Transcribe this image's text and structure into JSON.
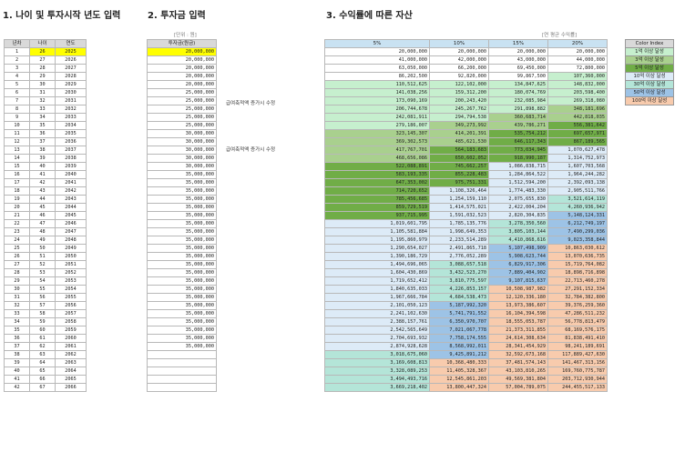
{
  "titles": {
    "section1": "1. 나이 및 투자시작 년도 입력",
    "section2": "2. 투자금 입력",
    "section3": "3. 수익률에 따른 자산"
  },
  "notes": {
    "unit": "[단위 : 원]",
    "rate": "[연 평균 수익률]",
    "annotation1": "급여축적액 증가시 수정",
    "annotation2": "급여축적액 증가시 수정"
  },
  "headers": {
    "year_no": "년차",
    "age": "나이",
    "year": "연도",
    "investment": "투자금(원금)",
    "rates": [
      "5%",
      "10%",
      "15%",
      "20%"
    ]
  },
  "legend": {
    "title": "Color Index",
    "items": [
      {
        "label": "1억 이상 달성",
        "color": "#c6efce"
      },
      {
        "label": "3억 이상 달성",
        "color": "#a9d08e"
      },
      {
        "label": "5억 이상 달성",
        "color": "#70ad47"
      },
      {
        "label": "10억 이상 달성",
        "color": "#ddebf7"
      },
      {
        "label": "30억 이상 달성",
        "color": "#b4e5d8"
      },
      {
        "label": "50억 이상 달성",
        "color": "#9dc3e6"
      },
      {
        "label": "100억 이상 달성",
        "color": "#f8cbad"
      }
    ]
  },
  "rows": [
    {
      "n": "1",
      "age": "26",
      "year": "2025",
      "inv": "20,000,000",
      "r5": "20,000,000",
      "r10": "20,000,000",
      "r15": "20,000,000",
      "r20": "20,000,000"
    },
    {
      "n": "2",
      "age": "27",
      "year": "2026",
      "inv": "20,000,000",
      "r5": "41,000,000",
      "r10": "42,000,000",
      "r15": "43,000,000",
      "r20": "44,000,000"
    },
    {
      "n": "3",
      "age": "28",
      "year": "2027",
      "inv": "20,000,000",
      "r5": "63,050,000",
      "r10": "66,200,000",
      "r15": "69,450,000",
      "r20": "72,800,000"
    },
    {
      "n": "4",
      "age": "29",
      "year": "2028",
      "inv": "20,000,000",
      "r5": "86,202,500",
      "r10": "92,820,000",
      "r15": "99,867,500",
      "r20": "107,360,000"
    },
    {
      "n": "5",
      "age": "30",
      "year": "2029",
      "inv": "20,000,000",
      "r5": "110,512,625",
      "r10": "122,102,000",
      "r15": "134,847,625",
      "r20": "148,832,000"
    },
    {
      "n": "6",
      "age": "31",
      "year": "2030",
      "inv": "25,000,000",
      "r5": "141,038,256",
      "r10": "159,312,200",
      "r15": "180,074,769",
      "r20": "203,598,400"
    },
    {
      "n": "7",
      "age": "32",
      "year": "2031",
      "inv": "25,000,000",
      "r5": "173,090,169",
      "r10": "200,243,420",
      "r15": "232,085,984",
      "r20": "269,318,080"
    },
    {
      "n": "8",
      "age": "33",
      "year": "2032",
      "inv": "25,000,000",
      "r5": "206,744,678",
      "r10": "245,267,762",
      "r15": "291,898,882",
      "r20": "348,181,696"
    },
    {
      "n": "9",
      "age": "34",
      "year": "2033",
      "inv": "25,000,000",
      "r5": "242,081,911",
      "r10": "294,794,538",
      "r15": "360,683,714",
      "r20": "442,818,035"
    },
    {
      "n": "10",
      "age": "35",
      "year": "2034",
      "inv": "25,000,000",
      "r5": "279,186,007",
      "r10": "349,273,992",
      "r15": "439,786,271",
      "r20": "556,381,642"
    },
    {
      "n": "11",
      "age": "36",
      "year": "2035",
      "inv": "30,000,000",
      "r5": "323,145,307",
      "r10": "414,201,391",
      "r15": "535,754,212",
      "r20": "697,657,971"
    },
    {
      "n": "12",
      "age": "37",
      "year": "2036",
      "inv": "30,000,000",
      "r5": "369,302,573",
      "r10": "485,621,530",
      "r15": "646,117,343",
      "r20": "867,189,565"
    },
    {
      "n": "13",
      "age": "38",
      "year": "2037",
      "inv": "30,000,000",
      "r5": "417,767,701",
      "r10": "564,183,683",
      "r15": "773,034,945",
      "r20": "1,070,627,478"
    },
    {
      "n": "14",
      "age": "39",
      "year": "2038",
      "inv": "30,000,000",
      "r5": "468,656,086",
      "r10": "650,602,052",
      "r15": "918,990,187",
      "r20": "1,314,752,973"
    },
    {
      "n": "15",
      "age": "40",
      "year": "2039",
      "inv": "30,000,000",
      "r5": "522,088,891",
      "r10": "745,662,257",
      "r15": "1,086,838,715",
      "r20": "1,607,703,568"
    },
    {
      "n": "16",
      "age": "41",
      "year": "2040",
      "inv": "35,000,000",
      "r5": "583,193,335",
      "r10": "855,228,483",
      "r15": "1,284,864,522",
      "r20": "1,964,244,282"
    },
    {
      "n": "17",
      "age": "42",
      "year": "2041",
      "inv": "35,000,000",
      "r5": "647,353,002",
      "r10": "975,751,331",
      "r15": "1,512,594,200",
      "r20": "2,392,093,138"
    },
    {
      "n": "18",
      "age": "43",
      "year": "2042",
      "inv": "35,000,000",
      "r5": "714,720,652",
      "r10": "1,108,326,464",
      "r15": "1,774,483,330",
      "r20": "2,905,511,766"
    },
    {
      "n": "19",
      "age": "44",
      "year": "2043",
      "inv": "35,000,000",
      "r5": "785,456,685",
      "r10": "1,254,159,110",
      "r15": "2,075,655,830",
      "r20": "3,521,614,119"
    },
    {
      "n": "20",
      "age": "45",
      "year": "2044",
      "inv": "35,000,000",
      "r5": "859,729,519",
      "r10": "1,414,575,021",
      "r15": "2,422,004,204",
      "r20": "4,260,936,942"
    },
    {
      "n": "21",
      "age": "46",
      "year": "2045",
      "inv": "35,000,000",
      "r5": "937,715,995",
      "r10": "1,591,032,523",
      "r15": "2,820,304,835",
      "r20": "5,148,124,331"
    },
    {
      "n": "22",
      "age": "47",
      "year": "2046",
      "inv": "35,000,000",
      "r5": "1,019,601,795",
      "r10": "1,785,135,776",
      "r15": "3,278,350,560",
      "r20": "6,212,749,197"
    },
    {
      "n": "23",
      "age": "48",
      "year": "2047",
      "inv": "35,000,000",
      "r5": "1,105,581,884",
      "r10": "1,998,649,353",
      "r15": "3,805,103,144",
      "r20": "7,490,299,036"
    },
    {
      "n": "24",
      "age": "49",
      "year": "2048",
      "inv": "35,000,000",
      "r5": "1,195,860,979",
      "r10": "2,233,514,289",
      "r15": "4,410,868,616",
      "r20": "9,023,358,844"
    },
    {
      "n": "25",
      "age": "50",
      "year": "2049",
      "inv": "35,000,000",
      "r5": "1,290,654,027",
      "r10": "2,491,865,718",
      "r15": "5,107,498,909",
      "r20": "10,863,030,612"
    },
    {
      "n": "26",
      "age": "51",
      "year": "2050",
      "inv": "35,000,000",
      "r5": "1,390,186,729",
      "r10": "2,776,052,289",
      "r15": "5,908,623,744",
      "r20": "13,070,636,735"
    },
    {
      "n": "27",
      "age": "52",
      "year": "2051",
      "inv": "35,000,000",
      "r5": "1,494,696,065",
      "r10": "3,088,657,518",
      "r15": "6,829,917,306",
      "r20": "15,719,764,082"
    },
    {
      "n": "28",
      "age": "53",
      "year": "2052",
      "inv": "35,000,000",
      "r5": "1,604,430,869",
      "r10": "3,432,523,270",
      "r15": "7,889,404,902",
      "r20": "18,898,716,898"
    },
    {
      "n": "29",
      "age": "54",
      "year": "2053",
      "inv": "35,000,000",
      "r5": "1,719,652,412",
      "r10": "3,810,775,597",
      "r15": "9,107,815,637",
      "r20": "22,713,460,278"
    },
    {
      "n": "30",
      "age": "55",
      "year": "2054",
      "inv": "35,000,000",
      "r5": "1,840,635,033",
      "r10": "4,226,853,157",
      "r15": "10,508,987,982",
      "r20": "27,291,152,334"
    },
    {
      "n": "31",
      "age": "56",
      "year": "2055",
      "inv": "35,000,000",
      "r5": "1,967,666,784",
      "r10": "4,684,538,473",
      "r15": "12,120,336,180",
      "r20": "32,784,382,800"
    },
    {
      "n": "32",
      "age": "57",
      "year": "2056",
      "inv": "35,000,000",
      "r5": "2,101,050,123",
      "r10": "5,187,992,320",
      "r15": "13,973,386,607",
      "r20": "39,376,259,360"
    },
    {
      "n": "33",
      "age": "58",
      "year": "2057",
      "inv": "35,000,000",
      "r5": "2,241,102,630",
      "r10": "5,741,791,552",
      "r15": "16,104,394,598",
      "r20": "47,286,511,232"
    },
    {
      "n": "34",
      "age": "59",
      "year": "2058",
      "inv": "35,000,000",
      "r5": "2,388,157,761",
      "r10": "6,350,970,707",
      "r15": "18,555,053,787",
      "r20": "56,778,813,479"
    },
    {
      "n": "35",
      "age": "60",
      "year": "2059",
      "inv": "35,000,000",
      "r5": "2,542,565,649",
      "r10": "7,021,067,778",
      "r15": "21,373,311,855",
      "r20": "68,169,576,175"
    },
    {
      "n": "36",
      "age": "61",
      "year": "2060",
      "inv": "35,000,000",
      "r5": "2,704,693,932",
      "r10": "7,758,174,555",
      "r15": "24,614,308,634",
      "r20": "81,838,491,410"
    },
    {
      "n": "37",
      "age": "62",
      "year": "2061",
      "inv": "35,000,000",
      "r5": "2,874,928,628",
      "r10": "8,568,992,011",
      "r15": "28,341,454,929",
      "r20": "98,241,189,691"
    },
    {
      "n": "38",
      "age": "63",
      "year": "2062",
      "inv": "",
      "r5": "3,018,675,060",
      "r10": "9,425,891,212",
      "r15": "32,592,673,168",
      "r20": "117,889,427,630"
    },
    {
      "n": "39",
      "age": "64",
      "year": "2063",
      "inv": "",
      "r5": "3,169,608,813",
      "r10": "10,368,480,333",
      "r15": "37,481,574,143",
      "r20": "141,467,313,156"
    },
    {
      "n": "40",
      "age": "65",
      "year": "2064",
      "inv": "",
      "r5": "3,328,089,253",
      "r10": "11,405,328,367",
      "r15": "43,103,810,265",
      "r20": "169,760,775,787"
    },
    {
      "n": "41",
      "age": "66",
      "year": "2065",
      "inv": "",
      "r5": "3,494,493,716",
      "r10": "12,545,861,203",
      "r15": "49,569,381,804",
      "r20": "203,712,930,944"
    },
    {
      "n": "42",
      "age": "67",
      "year": "2066",
      "inv": "",
      "r5": "3,669,218,402",
      "r10": "13,800,447,324",
      "r15": "57,004,789,075",
      "r20": "244,455,517,133"
    }
  ]
}
